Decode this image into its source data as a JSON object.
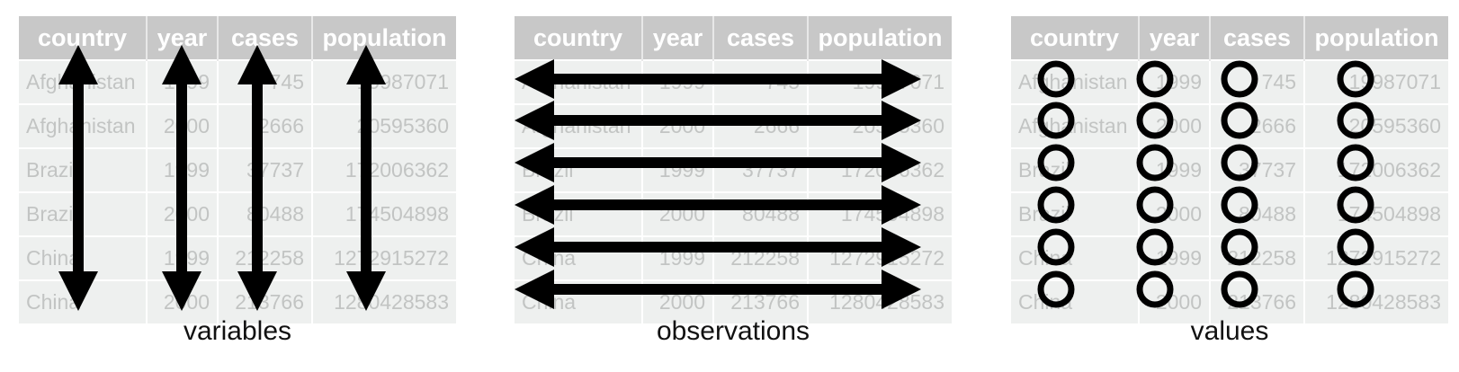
{
  "table": {
    "headers": [
      "country",
      "year",
      "cases",
      "population"
    ],
    "rows": [
      [
        "Afghanistan",
        "1999",
        "745",
        "19987071"
      ],
      [
        "Afghanistan",
        "2000",
        "2666",
        "20595360"
      ],
      [
        "Brazil",
        "1999",
        "37737",
        "172006362"
      ],
      [
        "Brazil",
        "2000",
        "80488",
        "174504898"
      ],
      [
        "China",
        "1999",
        "212258",
        "1272915272"
      ],
      [
        "China",
        "2000",
        "213766",
        "1280428583"
      ]
    ]
  },
  "panels": [
    {
      "id": "variables",
      "caption": "variables",
      "marker": "vertical-arrow"
    },
    {
      "id": "observations",
      "caption": "observations",
      "marker": "horizontal-arrow"
    },
    {
      "id": "values",
      "caption": "values",
      "marker": "circle"
    }
  ],
  "colors": {
    "header_bg": "#c8c8c8",
    "header_text": "#ffffff",
    "cell_bg": "#eef0ef",
    "cell_text": "#c2c4c3",
    "marker": "#000000"
  }
}
